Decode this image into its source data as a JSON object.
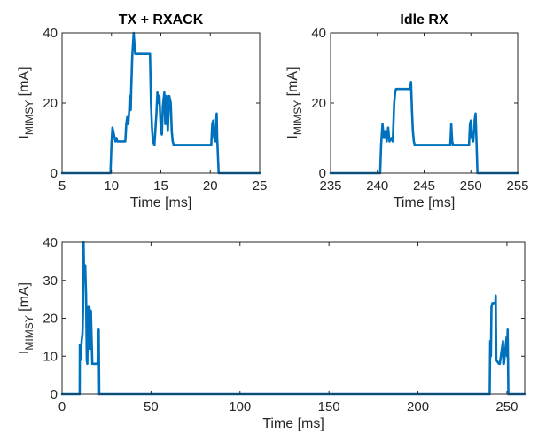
{
  "chart_data": [
    {
      "type": "line",
      "title": "TX + RXACK",
      "xlabel": "Time [ms]",
      "ylabel_main": "I",
      "ylabel_sub": "MIMSY",
      "ylabel_unit": " [mA]",
      "xlim": [
        5,
        25
      ],
      "ylim": [
        0,
        40
      ],
      "xticks": [
        5,
        10,
        15,
        20,
        25
      ],
      "yticks": [
        0,
        20,
        40
      ],
      "series": [
        {
          "color": "#0072BD",
          "x": [
            5,
            9.9,
            10.0,
            10.1,
            10.25,
            10.4,
            10.5,
            10.6,
            11.4,
            11.5,
            11.6,
            11.7,
            11.8,
            11.85,
            11.95,
            12.0,
            12.1,
            12.25,
            12.4,
            13.9,
            14.0,
            14.1,
            14.2,
            14.35,
            14.55,
            14.65,
            14.75,
            14.85,
            15.0,
            15.1,
            15.2,
            15.35,
            15.45,
            15.55,
            15.7,
            15.85,
            16.0,
            16.1,
            16.2,
            16.3,
            20.1,
            20.2,
            20.3,
            20.4,
            20.5,
            20.6,
            20.65,
            20.7,
            20.85,
            25
          ],
          "y": [
            0,
            0,
            8,
            13,
            11,
            9,
            10,
            9,
            9,
            14,
            16,
            14,
            18,
            22,
            18,
            24,
            33,
            40,
            34,
            34,
            20,
            13,
            9,
            8,
            17,
            23,
            20,
            22,
            12,
            11,
            19,
            23,
            14,
            22,
            12,
            22,
            20,
            12,
            9,
            8,
            8,
            14,
            15,
            10,
            9,
            15,
            17,
            10,
            0,
            0
          ]
        }
      ]
    },
    {
      "type": "line",
      "title": "Idle RX",
      "xlabel": "Time [ms]",
      "ylabel_main": "I",
      "ylabel_sub": "MIMSY",
      "ylabel_unit": " [mA]",
      "xlim": [
        235,
        255
      ],
      "ylim": [
        0,
        40
      ],
      "xticks": [
        235,
        240,
        245,
        250,
        255
      ],
      "yticks": [
        0,
        20,
        40
      ],
      "series": [
        {
          "color": "#0072BD",
          "x": [
            235,
            240.3,
            240.4,
            240.55,
            240.7,
            240.85,
            241.0,
            241.15,
            241.3,
            241.5,
            241.65,
            241.8,
            241.9,
            242.0,
            243.5,
            243.6,
            243.7,
            243.8,
            243.9,
            244.0,
            247.8,
            247.9,
            248.0,
            248.1,
            248.2,
            249.8,
            249.9,
            250.0,
            250.1,
            250.25,
            250.4,
            250.5,
            250.6,
            250.7,
            255
          ],
          "y": [
            0,
            0,
            8,
            14,
            10,
            12,
            9,
            13,
            9,
            10,
            9,
            20,
            23,
            24,
            24,
            26,
            18,
            12,
            9,
            8,
            8,
            14,
            9,
            8,
            8,
            8,
            14,
            15,
            10,
            9,
            15,
            17,
            9,
            0,
            0
          ]
        }
      ]
    },
    {
      "type": "line",
      "title": "",
      "xlabel": "Time [ms]",
      "ylabel_main": "I",
      "ylabel_sub": "MIMSY",
      "ylabel_unit": " [mA]",
      "xlim": [
        0,
        260
      ],
      "ylim": [
        0,
        40
      ],
      "xticks": [
        0,
        50,
        100,
        150,
        200,
        250
      ],
      "yticks": [
        0,
        10,
        20,
        30,
        40
      ],
      "series": [
        {
          "color": "#0072BD",
          "x": [
            0,
            9.9,
            10.0,
            10.4,
            11.0,
            11.5,
            11.8,
            12.1,
            12.3,
            13.0,
            13.5,
            13.9,
            14.2,
            14.6,
            15.0,
            15.4,
            15.8,
            16.2,
            17.0,
            18.0,
            19.0,
            20.0,
            20.2,
            20.6,
            20.9,
            239.8,
            240.3,
            240.6,
            241.0,
            241.3,
            241.8,
            242.0,
            243.5,
            243.7,
            244.0,
            245.5,
            246.0,
            247.8,
            248.0,
            248.3,
            249.8,
            250.1,
            250.4,
            250.6,
            250.8,
            260
          ],
          "y": [
            0,
            0,
            13,
            9,
            14,
            16,
            22,
            40,
            34,
            34,
            26,
            9,
            8,
            23,
            12,
            23,
            12,
            22,
            8,
            8,
            8,
            8,
            14,
            17,
            0,
            0,
            0,
            14,
            10,
            23,
            24,
            24,
            24,
            26,
            9,
            8,
            8,
            14,
            8,
            8,
            15,
            10,
            17,
            9,
            0,
            0
          ]
        }
      ]
    }
  ]
}
